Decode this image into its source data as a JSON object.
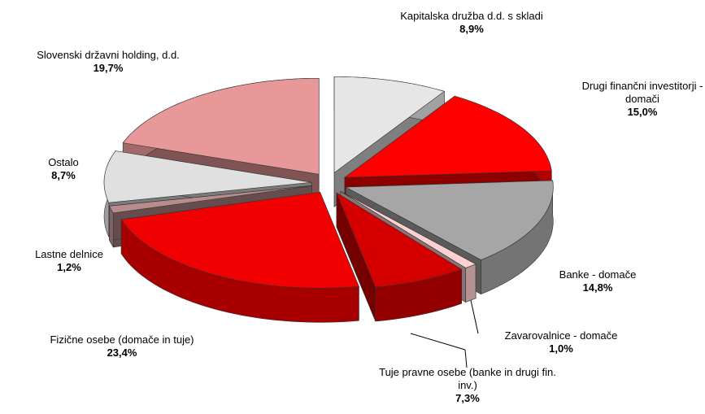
{
  "chart_data": {
    "type": "pie3d",
    "categories": [
      "Kapitalska družba d.d. s skladi",
      "Drugi finančni investitorji - domači",
      "Banke - domače",
      "Zavarovalnice - domače",
      "Tuje pravne osebe (banke in drugi fin. inv.)",
      "Fizične osebe (domače in tuje)",
      "Lastne delnice",
      "Ostalo",
      "Slovenski državni holding, d.d."
    ],
    "values": [
      8.9,
      15.0,
      14.8,
      1.0,
      7.3,
      23.4,
      1.2,
      8.7,
      19.7
    ],
    "value_labels": [
      "8,9%",
      "15,0%",
      "14,8%",
      "1,0%",
      "7,3%",
      "23,4%",
      "1,2%",
      "8,7%",
      "19,7%"
    ],
    "colors": [
      "#e6e6e6",
      "#ff0000",
      "#a6a6a6",
      "#ffd0d0",
      "#d40000",
      "#f00000",
      "#b88c8c",
      "#e0e0e0",
      "#e89898"
    ]
  }
}
